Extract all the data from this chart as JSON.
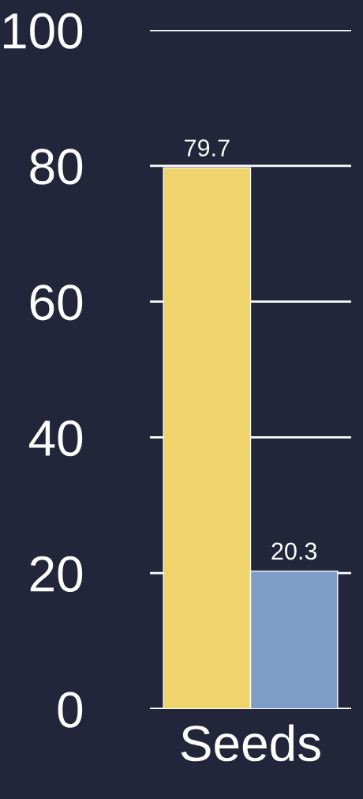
{
  "chart_data": {
    "type": "bar",
    "categories": [
      "Seeds"
    ],
    "series": [
      {
        "color": "#efd46c",
        "values": [
          79.7
        ]
      },
      {
        "color": "#7e9cc6",
        "values": [
          20.3
        ]
      }
    ],
    "ylim": [
      0,
      100
    ],
    "yticks": [
      0,
      20,
      40,
      60,
      80,
      100
    ],
    "grid": "y",
    "data_labels": true
  }
}
